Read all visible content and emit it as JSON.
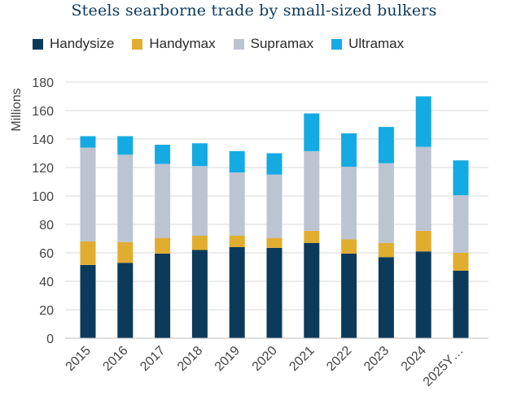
{
  "chart_data": {
    "type": "bar",
    "stacked": true,
    "title": "Steels searborne trade by small-sized bulkers",
    "xlabel": "",
    "ylabel": "Millions",
    "ylim": [
      0,
      180
    ],
    "yticks": [
      0,
      20,
      40,
      60,
      80,
      100,
      120,
      140,
      160,
      180
    ],
    "grid": true,
    "legend_position": "top",
    "categories": [
      "2015",
      "2016",
      "2017",
      "2018",
      "2019",
      "2020",
      "2021",
      "2022",
      "2023",
      "2024",
      "2025Y…"
    ],
    "series": [
      {
        "name": "Handysize",
        "color": "#0b3a5b",
        "values": [
          51.5,
          53,
          59.5,
          62,
          64,
          63.5,
          67,
          59.5,
          57,
          61,
          47.5
        ]
      },
      {
        "name": "Handymax",
        "color": "#e0ad2f",
        "values": [
          16.5,
          14.5,
          11,
          10,
          8,
          7,
          8.5,
          10,
          10,
          14.5,
          12.5
        ]
      },
      {
        "name": "Supramax",
        "color": "#bcc4d1",
        "values": [
          66,
          61.5,
          52,
          49,
          44.5,
          44.5,
          56,
          51,
          56,
          59,
          40.5
        ]
      },
      {
        "name": "Ultramax",
        "color": "#14aae3",
        "values": [
          8,
          13,
          13.5,
          16,
          15,
          15,
          26.5,
          23.5,
          25.5,
          35.5,
          24.5
        ]
      }
    ]
  }
}
